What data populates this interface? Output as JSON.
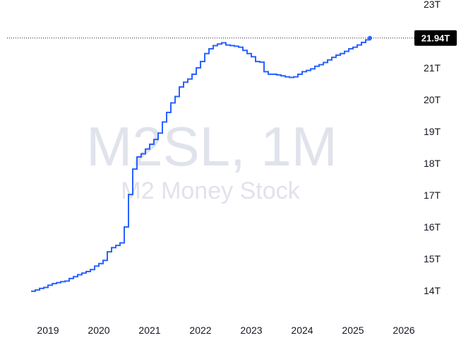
{
  "watermark": {
    "symbol": "M2SL, 1M",
    "description": "M2 Money Stock"
  },
  "colors": {
    "line": "#2962ff",
    "watermark": "#e0e3eb",
    "text": "#131722",
    "badge_bg": "#000000",
    "badge_text": "#ffffff",
    "price_line": "#131722"
  },
  "chart_data": {
    "type": "line",
    "title": "",
    "xlabel": "",
    "ylabel": "",
    "step": true,
    "x_ticks": [
      "2019",
      "2020",
      "2021",
      "2022",
      "2023",
      "2024",
      "2025",
      "2026"
    ],
    "y_ticks": [
      "14T",
      "15T",
      "16T",
      "17T",
      "18T",
      "19T",
      "20T",
      "21T",
      "23T"
    ],
    "y_unit": "T",
    "ylim": [
      13.5,
      23
    ],
    "last_value_label": "21.94T",
    "series": [
      {
        "x": [
          "2018-09",
          "2018-10",
          "2018-11",
          "2018-12",
          "2019-01",
          "2019-02",
          "2019-03",
          "2019-04",
          "2019-05",
          "2019-06",
          "2019-07",
          "2019-08",
          "2019-09",
          "2019-10",
          "2019-11",
          "2019-12",
          "2020-01",
          "2020-02",
          "2020-03",
          "2020-04",
          "2020-05",
          "2020-06",
          "2020-07",
          "2020-08",
          "2020-09",
          "2020-10",
          "2020-11",
          "2020-12",
          "2021-01",
          "2021-02",
          "2021-03",
          "2021-04",
          "2021-05",
          "2021-06",
          "2021-07",
          "2021-08",
          "2021-09",
          "2021-10",
          "2021-11",
          "2021-12",
          "2022-01",
          "2022-02",
          "2022-03",
          "2022-04",
          "2022-05",
          "2022-06",
          "2022-07",
          "2022-08",
          "2022-09",
          "2022-10",
          "2022-11",
          "2022-12",
          "2023-01",
          "2023-02",
          "2023-03",
          "2023-04",
          "2023-05",
          "2023-06",
          "2023-07",
          "2023-08",
          "2023-09",
          "2023-10",
          "2023-11",
          "2023-12",
          "2024-01",
          "2024-02",
          "2024-03",
          "2024-04",
          "2024-05",
          "2024-06",
          "2024-07",
          "2024-08",
          "2024-09",
          "2024-10",
          "2024-11",
          "2024-12",
          "2025-01",
          "2025-02",
          "2025-03",
          "2025-04",
          "2025-05"
        ],
        "values": [
          13.98,
          14.02,
          14.07,
          14.1,
          14.17,
          14.22,
          14.25,
          14.28,
          14.3,
          14.38,
          14.44,
          14.5,
          14.55,
          14.6,
          14.66,
          14.77,
          14.85,
          14.95,
          15.22,
          15.35,
          15.42,
          15.5,
          16.0,
          17.02,
          17.82,
          18.2,
          18.3,
          18.45,
          18.6,
          18.75,
          18.95,
          19.3,
          19.6,
          19.9,
          20.1,
          20.4,
          20.55,
          20.65,
          20.8,
          21.0,
          21.2,
          21.45,
          21.6,
          21.7,
          21.75,
          21.79,
          21.72,
          21.7,
          21.68,
          21.65,
          21.55,
          21.45,
          21.35,
          21.2,
          21.18,
          20.88,
          20.8,
          20.8,
          20.78,
          20.75,
          20.72,
          20.7,
          20.72,
          20.8,
          20.88,
          20.92,
          20.97,
          21.05,
          21.1,
          21.17,
          21.25,
          21.33,
          21.4,
          21.45,
          21.52,
          21.6,
          21.65,
          21.72,
          21.8,
          21.88,
          21.94
        ]
      }
    ]
  }
}
